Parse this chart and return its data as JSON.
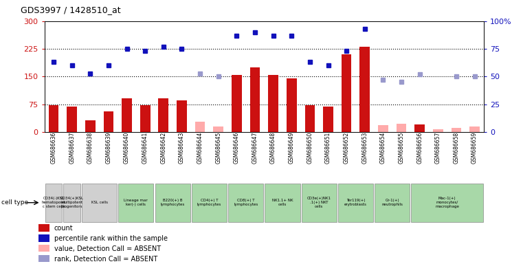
{
  "title": "GDS3997 / 1428510_at",
  "samples": [
    "GSM686636",
    "GSM686637",
    "GSM686638",
    "GSM686639",
    "GSM686640",
    "GSM686641",
    "GSM686642",
    "GSM686643",
    "GSM686644",
    "GSM686645",
    "GSM686646",
    "GSM686647",
    "GSM686648",
    "GSM686649",
    "GSM686650",
    "GSM686651",
    "GSM686652",
    "GSM686653",
    "GSM686654",
    "GSM686655",
    "GSM686656",
    "GSM686657",
    "GSM686658",
    "GSM686659"
  ],
  "counts": [
    72,
    68,
    32,
    55,
    92,
    72,
    92,
    85,
    null,
    null,
    155,
    175,
    155,
    145,
    72,
    68,
    210,
    230,
    null,
    null,
    20,
    null,
    null,
    null
  ],
  "absent_counts": [
    null,
    null,
    null,
    null,
    null,
    null,
    null,
    null,
    28,
    15,
    null,
    null,
    null,
    null,
    null,
    null,
    null,
    null,
    18,
    22,
    null,
    8,
    12,
    15
  ],
  "ranks_pct": [
    63,
    60,
    53,
    60,
    75,
    73,
    77,
    75,
    null,
    null,
    87,
    90,
    87,
    87,
    63,
    60,
    73,
    93,
    null,
    null,
    null,
    null,
    null,
    null
  ],
  "absent_ranks_pct": [
    null,
    null,
    null,
    null,
    null,
    null,
    null,
    null,
    53,
    50,
    null,
    null,
    null,
    null,
    null,
    null,
    null,
    null,
    47,
    45,
    52,
    null,
    50,
    50
  ],
  "ylim_left": [
    0,
    300
  ],
  "ylim_right": [
    0,
    100
  ],
  "yticks_left": [
    0,
    75,
    150,
    225,
    300
  ],
  "yticks_right": [
    0,
    25,
    50,
    75,
    100
  ],
  "hlines": [
    75,
    150,
    225
  ],
  "cell_groups": [
    {
      "label": "CD34(-)KSL\nhematopoiet\nc stem cells",
      "start": 0,
      "end": 0,
      "color": "#d0d0d0"
    },
    {
      "label": "CD34(+)KSL\nmultipotent\nprogenitors",
      "start": 1,
      "end": 1,
      "color": "#d0d0d0"
    },
    {
      "label": "KSL cells",
      "start": 2,
      "end": 3,
      "color": "#d0d0d0"
    },
    {
      "label": "Lineage mar\nker(-) cells",
      "start": 4,
      "end": 5,
      "color": "#a8d8a8"
    },
    {
      "label": "B220(+) B\nlymphocytes",
      "start": 6,
      "end": 7,
      "color": "#a8d8a8"
    },
    {
      "label": "CD4(+) T\nlymphocytes",
      "start": 8,
      "end": 9,
      "color": "#a8d8a8"
    },
    {
      "label": "CD8(+) T\nlymphocytes",
      "start": 10,
      "end": 11,
      "color": "#a8d8a8"
    },
    {
      "label": "NK1.1+ NK\ncells",
      "start": 12,
      "end": 13,
      "color": "#a8d8a8"
    },
    {
      "label": "CD3e(+)NK1\n.1(+) NKT\ncells",
      "start": 14,
      "end": 15,
      "color": "#a8d8a8"
    },
    {
      "label": "Ter119(+)\nerytroblasts",
      "start": 16,
      "end": 17,
      "color": "#a8d8a8"
    },
    {
      "label": "Gr-1(+)\nneutrophils",
      "start": 18,
      "end": 19,
      "color": "#a8d8a8"
    },
    {
      "label": "Mac-1(+)\nmonocytes/\nmacrophage",
      "start": 20,
      "end": 23,
      "color": "#a8d8a8"
    }
  ],
  "bar_color": "#cc1111",
  "absent_bar_color": "#ffaaaa",
  "rank_color": "#1111bb",
  "absent_rank_color": "#9999cc",
  "left_axis_color": "#cc1111",
  "right_axis_color": "#1111bb",
  "legend_items": [
    {
      "color": "#cc1111",
      "label": "count"
    },
    {
      "color": "#1111bb",
      "label": "percentile rank within the sample"
    },
    {
      "color": "#ffaaaa",
      "label": "value, Detection Call = ABSENT"
    },
    {
      "color": "#9999cc",
      "label": "rank, Detection Call = ABSENT"
    }
  ]
}
